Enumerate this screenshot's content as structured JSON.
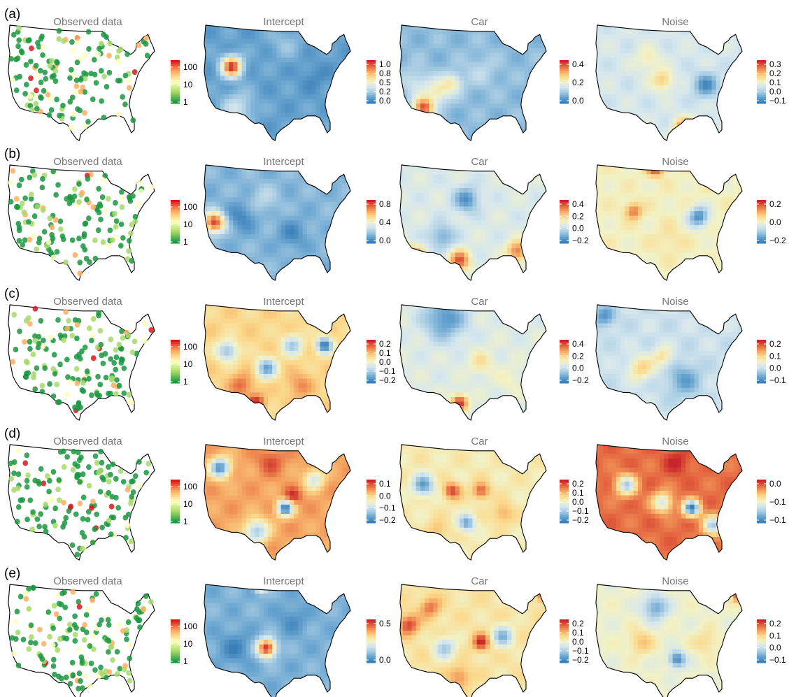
{
  "rows": [
    {
      "label": "(a)",
      "panels": [
        {
          "title": "Observed data",
          "kind": "points",
          "legend_ticks": [
            "100",
            "10",
            "1"
          ],
          "scale": "log"
        },
        {
          "title": "Intercept",
          "kind": "field",
          "legend_ticks": [
            "1.0",
            "0.8",
            "0.5",
            "0.2",
            "0.0"
          ],
          "range": [
            -0.1,
            1.05
          ],
          "base": 0.03,
          "hotspots": [
            [
              0.18,
              0.36,
              0.05,
              1.0
            ],
            [
              0.22,
              0.72,
              0.08,
              0.3
            ],
            [
              0.55,
              0.15,
              0.08,
              0.15
            ],
            [
              0.75,
              0.45,
              0.07,
              -0.05
            ]
          ]
        },
        {
          "title": "Car",
          "kind": "field",
          "legend_ticks": [
            "0.4",
            "0.2",
            "0.0"
          ],
          "range": [
            -0.1,
            0.5
          ],
          "base": 0.02,
          "hotspots": [
            [
              0.15,
              0.72,
              0.05,
              0.45
            ],
            [
              0.25,
              0.58,
              0.06,
              0.22
            ],
            [
              0.35,
              0.5,
              0.05,
              0.2
            ],
            [
              0.55,
              0.4,
              0.08,
              0.08
            ],
            [
              0.1,
              0.5,
              0.07,
              0.12
            ]
          ]
        },
        {
          "title": "Noise",
          "kind": "field",
          "legend_ticks": [
            "0.3",
            "0.2",
            "0.1",
            "0.0",
            "−0.1"
          ],
          "range": [
            -0.15,
            0.35
          ],
          "base": 0.04,
          "hotspots": [
            [
              0.12,
              0.93,
              0.05,
              0.33
            ],
            [
              0.6,
              0.9,
              0.05,
              0.3
            ],
            [
              0.45,
              0.48,
              0.05,
              0.18
            ],
            [
              0.75,
              0.52,
              0.06,
              -0.12
            ],
            [
              0.35,
              0.3,
              0.06,
              0.12
            ]
          ]
        }
      ]
    },
    {
      "label": "(b)",
      "panels": [
        {
          "title": "Observed data",
          "kind": "points",
          "legend_ticks": [
            "100",
            "10",
            "1"
          ],
          "scale": "log"
        },
        {
          "title": "Intercept",
          "kind": "field",
          "legend_ticks": [
            "0.8",
            "0.4",
            "0.0"
          ],
          "range": [
            -0.15,
            0.95
          ],
          "base": 0.05,
          "hotspots": [
            [
              0.06,
              0.5,
              0.05,
              0.9
            ],
            [
              0.25,
              0.45,
              0.07,
              -0.12
            ],
            [
              0.6,
              0.6,
              0.07,
              -0.1
            ],
            [
              0.4,
              0.3,
              0.07,
              0.18
            ]
          ]
        },
        {
          "title": "Car",
          "kind": "field",
          "legend_ticks": [
            "0.4",
            "0.2",
            "0.0",
            "−0.2"
          ],
          "range": [
            -0.25,
            0.45
          ],
          "base": 0.03,
          "hotspots": [
            [
              0.08,
              0.8,
              0.05,
              0.4
            ],
            [
              0.4,
              0.83,
              0.05,
              0.38
            ],
            [
              0.8,
              0.75,
              0.05,
              0.35
            ],
            [
              0.45,
              0.3,
              0.06,
              -0.2
            ],
            [
              0.28,
              0.62,
              0.06,
              -0.15
            ]
          ]
        },
        {
          "title": "Noise",
          "kind": "field",
          "legend_ticks": [
            "0.2",
            "0.0",
            "−0.2"
          ],
          "range": [
            -0.25,
            0.3
          ],
          "base": 0.03,
          "hotspots": [
            [
              0.4,
              0.02,
              0.04,
              0.3
            ],
            [
              0.25,
              0.4,
              0.04,
              0.22
            ],
            [
              0.7,
              0.45,
              0.05,
              -0.22
            ],
            [
              0.5,
              0.65,
              0.07,
              0.07
            ]
          ]
        }
      ]
    },
    {
      "label": "(c)",
      "panels": [
        {
          "title": "Observed data",
          "kind": "points",
          "legend_ticks": [
            "100",
            "10",
            "1"
          ],
          "scale": "log"
        },
        {
          "title": "Intercept",
          "kind": "field",
          "legend_ticks": [
            "0.2",
            "0.1",
            "0.0",
            "−0.1",
            "−0.2"
          ],
          "range": [
            -0.25,
            0.25
          ],
          "base": 0.06,
          "hotspots": [
            [
              0.35,
              0.85,
              0.04,
              0.25
            ],
            [
              0.15,
              0.4,
              0.05,
              -0.15
            ],
            [
              0.42,
              0.55,
              0.05,
              -0.18
            ],
            [
              0.6,
              0.35,
              0.05,
              -0.12
            ],
            [
              0.82,
              0.35,
              0.04,
              -0.25
            ],
            [
              0.25,
              0.7,
              0.06,
              0.18
            ],
            [
              0.65,
              0.7,
              0.06,
              0.15
            ]
          ]
        },
        {
          "title": "Car",
          "kind": "field",
          "legend_ticks": [
            "0.4",
            "0.2",
            "0.0",
            "−0.2"
          ],
          "range": [
            -0.25,
            0.45
          ],
          "base": 0.04,
          "hotspots": [
            [
              0.4,
              0.85,
              0.04,
              0.45
            ],
            [
              0.3,
              0.12,
              0.1,
              -0.2
            ],
            [
              0.55,
              0.5,
              0.06,
              0.15
            ],
            [
              0.75,
              0.65,
              0.07,
              0.1
            ]
          ]
        },
        {
          "title": "Noise",
          "kind": "field",
          "legend_ticks": [
            "0.2",
            "0.1",
            "0.0",
            "−0.1"
          ],
          "range": [
            -0.15,
            0.28
          ],
          "base": 0.0,
          "hotspots": [
            [
              0.78,
              0.02,
              0.04,
              0.28
            ],
            [
              0.05,
              0.1,
              0.05,
              -0.12
            ],
            [
              0.6,
              0.65,
              0.08,
              -0.1
            ],
            [
              0.3,
              0.55,
              0.06,
              0.12
            ],
            [
              0.45,
              0.45,
              0.05,
              0.1
            ]
          ]
        }
      ]
    },
    {
      "label": "(d)",
      "panels": [
        {
          "title": "Observed data",
          "kind": "points",
          "legend_ticks": [
            "100",
            "10",
            "1"
          ],
          "scale": "log"
        },
        {
          "title": "Intercept",
          "kind": "field",
          "legend_ticks": [
            "0.1",
            "0.0",
            "−0.1",
            "−0.2"
          ],
          "range": [
            -0.25,
            0.15
          ],
          "base": 0.05,
          "hotspots": [
            [
              0.55,
              0.55,
              0.04,
              -0.25
            ],
            [
              0.6,
              0.45,
              0.04,
              0.15
            ],
            [
              0.1,
              0.2,
              0.05,
              -0.22
            ],
            [
              0.35,
              0.75,
              0.06,
              -0.15
            ],
            [
              0.75,
              0.3,
              0.05,
              -0.1
            ],
            [
              0.45,
              0.15,
              0.06,
              0.12
            ]
          ]
        },
        {
          "title": "Car",
          "kind": "field",
          "legend_ticks": [
            "0.2",
            "0.1",
            "0.0",
            "−0.1",
            "−0.2"
          ],
          "range": [
            -0.25,
            0.25
          ],
          "base": 0.02,
          "hotspots": [
            [
              0.35,
              0.4,
              0.04,
              0.22
            ],
            [
              0.55,
              0.4,
              0.04,
              0.2
            ],
            [
              0.15,
              0.35,
              0.05,
              -0.2
            ],
            [
              0.45,
              0.68,
              0.04,
              -0.18
            ],
            [
              0.7,
              0.6,
              0.05,
              0.12
            ],
            [
              0.25,
              0.75,
              0.05,
              0.1
            ]
          ]
        },
        {
          "title": "Noise",
          "kind": "field",
          "legend_ticks": [
            "0.0",
            "−0.1",
            "−0.1"
          ],
          "range": [
            -0.16,
            0.05
          ],
          "base": 0.02,
          "hotspots": [
            [
              0.55,
              0.15,
              0.06,
              0.05
            ],
            [
              0.65,
              0.55,
              0.04,
              -0.16
            ],
            [
              0.2,
              0.35,
              0.05,
              -0.1
            ],
            [
              0.45,
              0.5,
              0.05,
              -0.08
            ],
            [
              0.8,
              0.7,
              0.05,
              -0.1
            ]
          ]
        }
      ]
    },
    {
      "label": "(e)",
      "panels": [
        {
          "title": "Observed data",
          "kind": "points",
          "legend_ticks": [
            "100",
            "10",
            "1"
          ],
          "scale": "log"
        },
        {
          "title": "Intercept",
          "kind": "field",
          "legend_ticks": [
            "0.5",
            "0.0"
          ],
          "range": [
            -0.15,
            0.75
          ],
          "base": 0.0,
          "hotspots": [
            [
              0.42,
              0.55,
              0.045,
              0.75
            ],
            [
              0.38,
              0.02,
              0.03,
              0.4
            ],
            [
              0.2,
              0.55,
              0.08,
              -0.12
            ],
            [
              0.6,
              0.3,
              0.07,
              -0.1
            ]
          ]
        },
        {
          "title": "Car",
          "kind": "field",
          "legend_ticks": [
            "0.2",
            "0.1",
            "0.0",
            "−0.1",
            "−0.2"
          ],
          "range": [
            -0.25,
            0.28
          ],
          "base": 0.05,
          "hotspots": [
            [
              0.55,
              0.5,
              0.04,
              0.28
            ],
            [
              0.05,
              0.35,
              0.05,
              0.25
            ],
            [
              0.98,
              0.1,
              0.03,
              0.25
            ],
            [
              0.2,
              0.2,
              0.05,
              0.2
            ],
            [
              0.4,
              0.8,
              0.05,
              0.18
            ],
            [
              0.7,
              0.45,
              0.05,
              -0.15
            ],
            [
              0.3,
              0.55,
              0.05,
              -0.12
            ]
          ]
        },
        {
          "title": "Noise",
          "kind": "field",
          "legend_ticks": [
            "0.2",
            "0.1",
            "0.0",
            "−0.1"
          ],
          "range": [
            -0.15,
            0.25
          ],
          "base": 0.04,
          "hotspots": [
            [
              0.98,
              0.1,
              0.03,
              0.25
            ],
            [
              0.4,
              0.2,
              0.06,
              -0.1
            ],
            [
              0.55,
              0.65,
              0.04,
              -0.14
            ],
            [
              0.3,
              0.5,
              0.06,
              0.12
            ],
            [
              0.75,
              0.5,
              0.06,
              0.1
            ]
          ]
        }
      ]
    }
  ],
  "palette": {
    "field": [
      "#3a7fb8",
      "#6aa5d0",
      "#a8cce3",
      "#d6e7ee",
      "#f2f2c6",
      "#fbd88a",
      "#f5a763",
      "#e4653f",
      "#c8262a"
    ],
    "points": [
      "#1a9641",
      "#a6d96a",
      "#ffffbf",
      "#fdae61",
      "#d7191c"
    ],
    "map_fill_points": "#ffffff",
    "outline": "#000000",
    "title_color": "#777777"
  }
}
